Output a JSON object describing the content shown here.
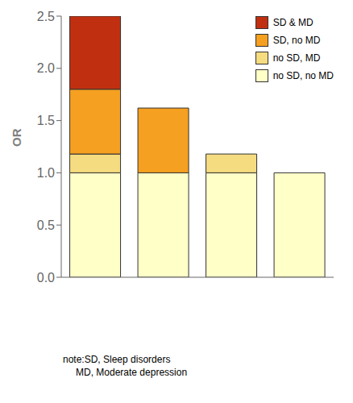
{
  "chart_data": {
    "type": "bar",
    "stacked": true,
    "categories": [
      null,
      null,
      null,
      null
    ],
    "series": [
      {
        "name": "no SD, no MD",
        "color": "#FFFFC8",
        "values": [
          1.0,
          1.0,
          1.0,
          1.0
        ]
      },
      {
        "name": "no SD, MD",
        "color": "#F5DC80",
        "values": [
          0.18,
          0.0,
          0.18,
          0.0
        ]
      },
      {
        "name": "SD, no MD",
        "color": "#F5A020",
        "values": [
          0.62,
          0.62,
          0.0,
          0.0
        ]
      },
      {
        "name": "SD & MD",
        "color": "#C03010",
        "values": [
          0.7,
          0.0,
          0.0,
          0.0
        ]
      }
    ],
    "ylabel": "OR",
    "ylim": [
      0,
      2.5
    ],
    "yticks": [
      {
        "value": 0,
        "label": "0.0"
      },
      0.5,
      {
        "value": 1,
        "label": "1.0"
      },
      1.5,
      {
        "value": 2,
        "label": "2.0"
      },
      2.5
    ],
    "legend": "upper right",
    "tick_labels": "y",
    "annotations": [
      "note:SD, Sleep disorders",
      "MD, Moderate depression"
    ]
  }
}
